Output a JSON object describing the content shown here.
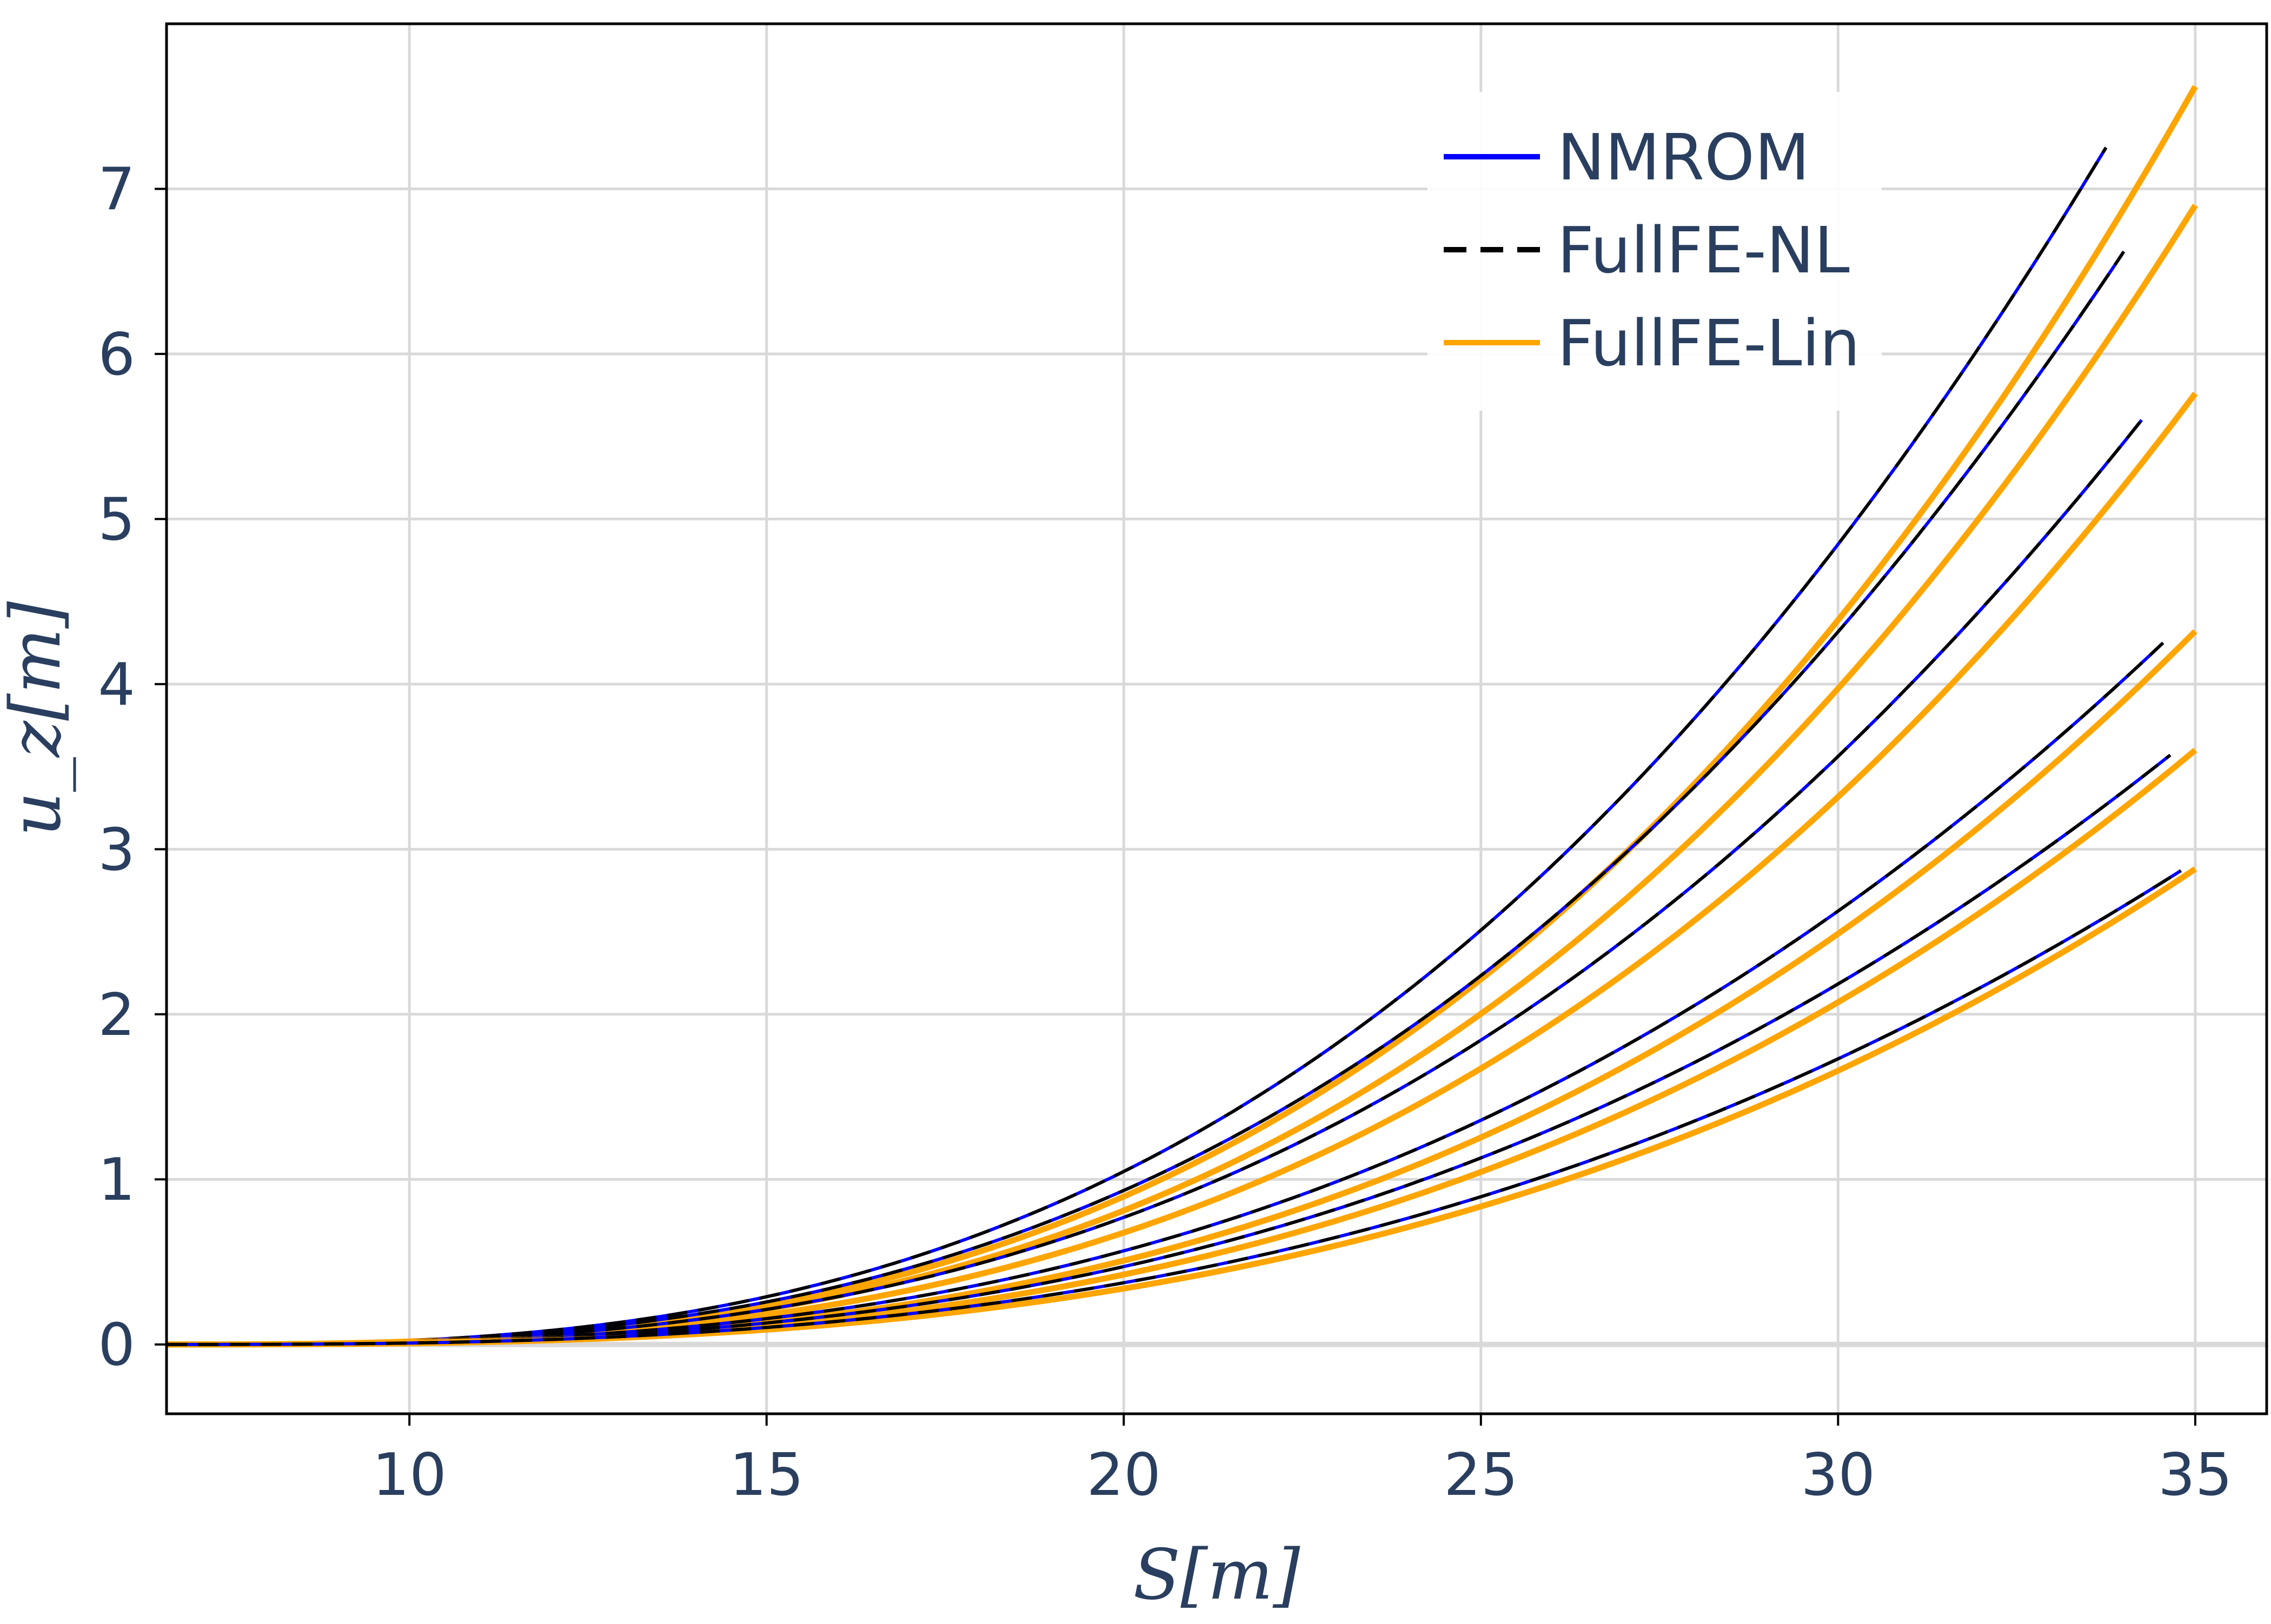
{
  "chart_data": {
    "type": "line",
    "title": "",
    "xlabel": "S[m]",
    "ylabel": "u_z[m]",
    "xlim": [
      6.6,
      36.0
    ],
    "ylim": [
      -0.42,
      8.0
    ],
    "xticks": [
      10,
      15,
      20,
      25,
      30,
      35
    ],
    "yticks": [
      0,
      1,
      2,
      3,
      4,
      5,
      6,
      7
    ],
    "grid": true,
    "legend_position": "top-right",
    "legend": [
      {
        "label": "NMROM",
        "color": "#0000ff",
        "dash": "solid"
      },
      {
        "label": "FullFE-NL",
        "color": "#000000",
        "dash": "dashed"
      },
      {
        "label": "FullFE-Lin",
        "color": "#ffa500",
        "dash": "solid"
      }
    ],
    "curves": [
      {
        "x_start": 6.6,
        "nl_x_end": 33.75,
        "nl_y_end": 7.25,
        "lin_x_end": 35.0,
        "lin_y_end": 7.62
      },
      {
        "x_start": 6.6,
        "nl_x_end": 34.0,
        "nl_y_end": 6.62,
        "lin_x_end": 35.0,
        "lin_y_end": 6.9
      },
      {
        "x_start": 6.6,
        "nl_x_end": 34.25,
        "nl_y_end": 5.6,
        "lin_x_end": 35.0,
        "lin_y_end": 5.76
      },
      {
        "x_start": 6.6,
        "nl_x_end": 34.55,
        "nl_y_end": 4.25,
        "lin_x_end": 35.0,
        "lin_y_end": 4.32
      },
      {
        "x_start": 6.6,
        "nl_x_end": 34.65,
        "nl_y_end": 3.57,
        "lin_x_end": 35.0,
        "lin_y_end": 3.6
      },
      {
        "x_start": 6.6,
        "nl_x_end": 34.8,
        "nl_y_end": 2.87,
        "lin_x_end": 35.0,
        "lin_y_end": 2.88
      }
    ]
  }
}
